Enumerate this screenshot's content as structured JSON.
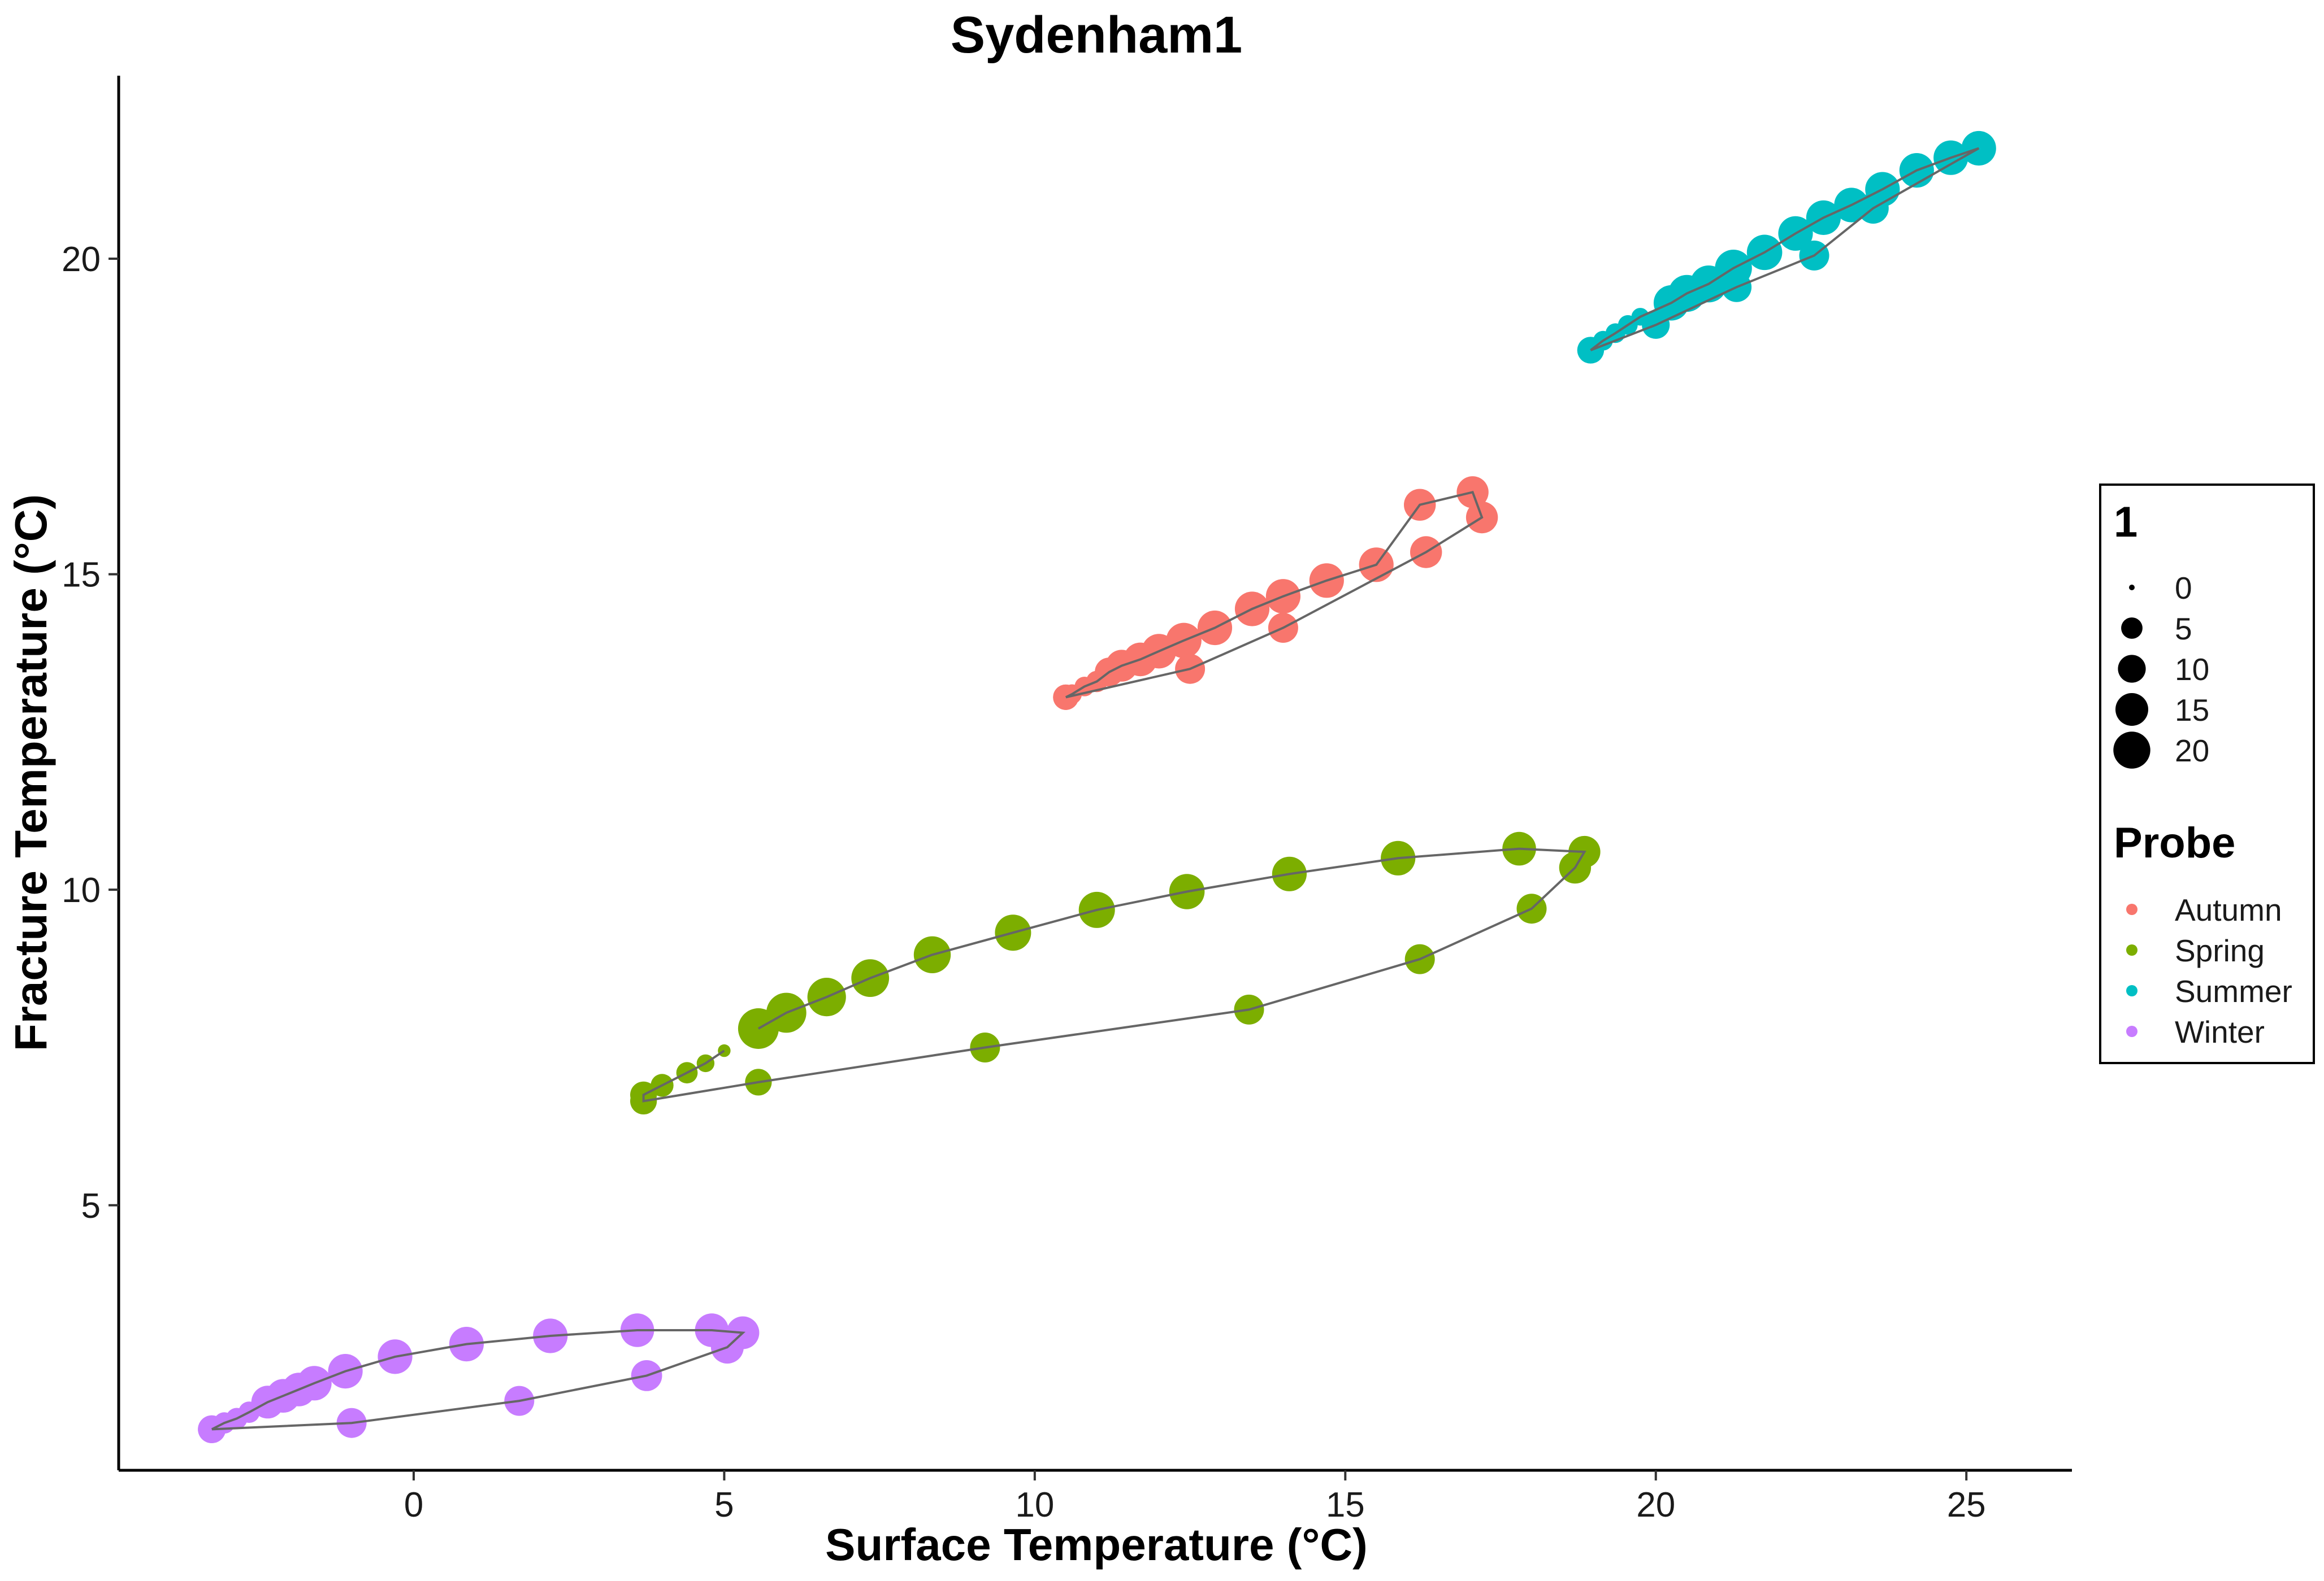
{
  "chart_data": {
    "type": "scatter",
    "title": "Sydenham1",
    "xlabel": "Surface Temperature (°C)",
    "ylabel": "Fracture Temperature (°C)",
    "xlim": [
      -4.75,
      26.7
    ],
    "ylim": [
      0.8,
      22.9
    ],
    "x_ticks": [
      0,
      5,
      10,
      15,
      20,
      25
    ],
    "y_ticks": [
      5,
      10,
      15,
      20
    ],
    "grid": false,
    "connected_path": true,
    "path_color": "#666666",
    "size_legend": {
      "title": "1",
      "values": [
        0,
        5,
        10,
        15,
        20
      ]
    },
    "color_legend": {
      "title": "Probe",
      "placement": "right"
    },
    "series": [
      {
        "name": "Autumn",
        "color": "#F8766D",
        "points": [
          {
            "x": 10.5,
            "y": 13.05,
            "size": 8
          },
          {
            "x": 10.6,
            "y": 13.1,
            "size": 4
          },
          {
            "x": 10.8,
            "y": 13.22,
            "size": 4
          },
          {
            "x": 11.0,
            "y": 13.3,
            "size": 5
          },
          {
            "x": 11.2,
            "y": 13.45,
            "size": 11
          },
          {
            "x": 11.4,
            "y": 13.55,
            "size": 14
          },
          {
            "x": 11.7,
            "y": 13.65,
            "size": 16
          },
          {
            "x": 12.0,
            "y": 13.78,
            "size": 17
          },
          {
            "x": 12.4,
            "y": 13.95,
            "size": 18
          },
          {
            "x": 12.9,
            "y": 14.15,
            "size": 17
          },
          {
            "x": 13.5,
            "y": 14.45,
            "size": 17
          },
          {
            "x": 14.0,
            "y": 14.65,
            "size": 17
          },
          {
            "x": 14.7,
            "y": 14.9,
            "size": 17
          },
          {
            "x": 15.5,
            "y": 15.15,
            "size": 17
          },
          {
            "x": 16.2,
            "y": 16.1,
            "size": 14
          },
          {
            "x": 17.05,
            "y": 16.3,
            "size": 14
          },
          {
            "x": 17.2,
            "y": 15.9,
            "size": 14
          },
          {
            "x": 16.3,
            "y": 15.35,
            "size": 14
          },
          {
            "x": 14.0,
            "y": 14.15,
            "size": 12
          },
          {
            "x": 12.5,
            "y": 13.5,
            "size": 12
          },
          {
            "x": 10.5,
            "y": 13.05,
            "size": 8
          }
        ]
      },
      {
        "name": "Spring",
        "color": "#7CAE00",
        "points": [
          {
            "x": 5.0,
            "y": 7.45,
            "size": 1
          },
          {
            "x": 4.7,
            "y": 7.25,
            "size": 3
          },
          {
            "x": 4.4,
            "y": 7.1,
            "size": 5
          },
          {
            "x": 4.0,
            "y": 6.9,
            "size": 6
          },
          {
            "x": 3.7,
            "y": 6.75,
            "size": 9
          },
          {
            "x": 3.7,
            "y": 6.65,
            "size": 9
          },
          {
            "x": 5.55,
            "y": 6.95,
            "size": 9
          },
          {
            "x": 9.2,
            "y": 7.5,
            "size": 12
          },
          {
            "x": 13.45,
            "y": 8.1,
            "size": 12
          },
          {
            "x": 16.2,
            "y": 8.9,
            "size": 12
          },
          {
            "x": 18.0,
            "y": 9.7,
            "size": 12
          },
          {
            "x": 18.7,
            "y": 10.35,
            "size": 14
          },
          {
            "x": 18.85,
            "y": 10.6,
            "size": 14
          },
          {
            "x": 17.8,
            "y": 10.65,
            "size": 16
          },
          {
            "x": 15.85,
            "y": 10.5,
            "size": 17
          },
          {
            "x": 14.1,
            "y": 10.25,
            "size": 17
          },
          {
            "x": 12.45,
            "y": 9.97,
            "size": 18
          },
          {
            "x": 11.0,
            "y": 9.68,
            "size": 19
          },
          {
            "x": 9.65,
            "y": 9.32,
            "size": 19
          },
          {
            "x": 8.35,
            "y": 8.97,
            "size": 20
          },
          {
            "x": 7.35,
            "y": 8.6,
            "size": 21
          },
          {
            "x": 6.65,
            "y": 8.3,
            "size": 22
          },
          {
            "x": 6.0,
            "y": 8.05,
            "size": 24
          },
          {
            "x": 5.55,
            "y": 7.8,
            "size": 25
          }
        ]
      },
      {
        "name": "Summer",
        "color": "#00BFC4",
        "points": [
          {
            "x": 18.95,
            "y": 18.55,
            "size": 9
          },
          {
            "x": 19.15,
            "y": 18.7,
            "size": 4
          },
          {
            "x": 19.35,
            "y": 18.82,
            "size": 4
          },
          {
            "x": 19.55,
            "y": 18.95,
            "size": 4
          },
          {
            "x": 19.75,
            "y": 19.08,
            "size": 3
          },
          {
            "x": 20.25,
            "y": 19.3,
            "size": 18
          },
          {
            "x": 20.5,
            "y": 19.45,
            "size": 20
          },
          {
            "x": 20.85,
            "y": 19.6,
            "size": 20
          },
          {
            "x": 21.25,
            "y": 19.85,
            "size": 20
          },
          {
            "x": 21.75,
            "y": 20.1,
            "size": 18
          },
          {
            "x": 22.25,
            "y": 20.4,
            "size": 17
          },
          {
            "x": 22.7,
            "y": 20.65,
            "size": 17
          },
          {
            "x": 23.15,
            "y": 20.85,
            "size": 17
          },
          {
            "x": 23.65,
            "y": 21.1,
            "size": 17
          },
          {
            "x": 24.2,
            "y": 21.4,
            "size": 17
          },
          {
            "x": 24.75,
            "y": 21.6,
            "size": 17
          },
          {
            "x": 25.2,
            "y": 21.75,
            "size": 17
          },
          {
            "x": 23.5,
            "y": 20.8,
            "size": 13
          },
          {
            "x": 22.55,
            "y": 20.05,
            "size": 12
          },
          {
            "x": 21.3,
            "y": 19.55,
            "size": 12
          },
          {
            "x": 20.0,
            "y": 18.95,
            "size": 10
          },
          {
            "x": 18.95,
            "y": 18.55,
            "size": 9
          }
        ]
      },
      {
        "name": "Winter",
        "color": "#C77CFF",
        "points": [
          {
            "x": -3.25,
            "y": 1.45,
            "size": 10
          },
          {
            "x": -3.05,
            "y": 1.55,
            "size": 5
          },
          {
            "x": -2.85,
            "y": 1.62,
            "size": 5
          },
          {
            "x": -2.65,
            "y": 1.72,
            "size": 5
          },
          {
            "x": -2.35,
            "y": 1.88,
            "size": 15
          },
          {
            "x": -2.1,
            "y": 1.98,
            "size": 16
          },
          {
            "x": -1.85,
            "y": 2.08,
            "size": 16
          },
          {
            "x": -1.6,
            "y": 2.18,
            "size": 17
          },
          {
            "x": -1.1,
            "y": 2.37,
            "size": 17
          },
          {
            "x": -0.3,
            "y": 2.6,
            "size": 17
          },
          {
            "x": 0.85,
            "y": 2.8,
            "size": 17
          },
          {
            "x": 2.2,
            "y": 2.93,
            "size": 17
          },
          {
            "x": 3.6,
            "y": 3.02,
            "size": 16
          },
          {
            "x": 4.8,
            "y": 3.02,
            "size": 16
          },
          {
            "x": 5.3,
            "y": 2.98,
            "size": 15
          },
          {
            "x": 5.05,
            "y": 2.75,
            "size": 15
          },
          {
            "x": 3.75,
            "y": 2.3,
            "size": 13
          },
          {
            "x": 1.7,
            "y": 1.9,
            "size": 12
          },
          {
            "x": -1.0,
            "y": 1.55,
            "size": 12
          },
          {
            "x": -3.25,
            "y": 1.45,
            "size": 10
          }
        ]
      }
    ]
  }
}
